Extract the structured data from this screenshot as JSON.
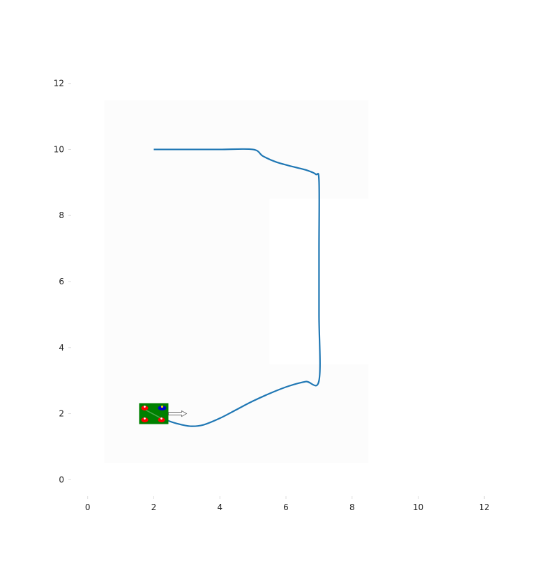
{
  "chart_data": {
    "type": "line",
    "title": "",
    "xlabel": "",
    "ylabel": "",
    "xlim": [
      -0.5,
      12.5
    ],
    "ylim": [
      -0.5,
      12.5
    ],
    "xticks": [
      0,
      2,
      4,
      6,
      8,
      10,
      12
    ],
    "yticks": [
      0,
      2,
      4,
      6,
      8,
      10,
      12
    ],
    "grid": false,
    "series": [
      {
        "color": "#1f77b4",
        "points": [
          [
            2.0,
            10.0
          ],
          [
            3.0,
            10.0
          ],
          [
            4.0,
            10.0
          ],
          [
            5.0,
            10.0
          ],
          [
            5.3,
            9.8
          ],
          [
            5.7,
            9.62
          ],
          [
            6.2,
            9.48
          ],
          [
            6.6,
            9.38
          ],
          [
            6.9,
            9.25
          ],
          [
            7.0,
            9.05
          ],
          [
            7.0,
            7.0
          ],
          [
            7.0,
            5.0
          ],
          [
            7.0,
            3.0
          ],
          [
            6.6,
            2.97
          ],
          [
            6.1,
            2.84
          ],
          [
            5.6,
            2.65
          ],
          [
            5.0,
            2.38
          ],
          [
            4.5,
            2.12
          ],
          [
            4.0,
            1.86
          ],
          [
            3.5,
            1.66
          ],
          [
            3.1,
            1.62
          ],
          [
            2.7,
            1.7
          ],
          [
            2.4,
            1.8
          ],
          [
            2.0,
            2.0
          ]
        ]
      }
    ],
    "robot": {
      "x": 2.0,
      "y": 2.0,
      "heading_deg": 0,
      "body_color": "#008000",
      "marker_color": "#ff0000",
      "accent_color": "#0000cc"
    },
    "background_regions_color": "#fcfcfc"
  }
}
